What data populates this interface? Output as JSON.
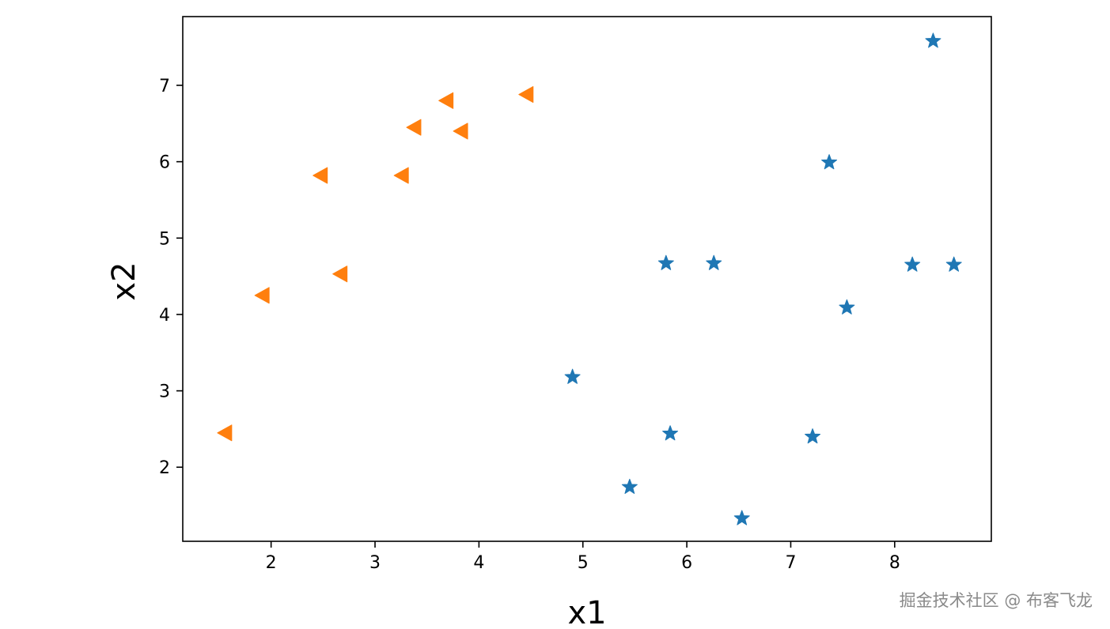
{
  "chart_data": {
    "type": "scatter",
    "title": "",
    "xlabel": "x1",
    "ylabel": "x2",
    "xlim": [
      1.15,
      8.93
    ],
    "ylim": [
      1.03,
      7.9
    ],
    "xticks": [
      2,
      3,
      4,
      5,
      6,
      7,
      8
    ],
    "yticks": [
      2,
      3,
      4,
      5,
      6,
      7
    ],
    "grid": false,
    "legend": "none",
    "series": [
      {
        "marker": "star",
        "color": "#1f77b4",
        "points": [
          {
            "x": 8.37,
            "y": 7.58
          },
          {
            "x": 7.37,
            "y": 5.99
          },
          {
            "x": 5.8,
            "y": 4.67
          },
          {
            "x": 6.26,
            "y": 4.67
          },
          {
            "x": 8.17,
            "y": 4.65
          },
          {
            "x": 8.57,
            "y": 4.65
          },
          {
            "x": 7.54,
            "y": 4.09
          },
          {
            "x": 4.9,
            "y": 3.18
          },
          {
            "x": 5.84,
            "y": 2.44
          },
          {
            "x": 7.21,
            "y": 2.4
          },
          {
            "x": 5.45,
            "y": 1.74
          },
          {
            "x": 6.53,
            "y": 1.33
          }
        ]
      },
      {
        "marker": "triangle-left",
        "color": "#ff7f0e",
        "points": [
          {
            "x": 4.46,
            "y": 6.88
          },
          {
            "x": 3.69,
            "y": 6.8
          },
          {
            "x": 3.38,
            "y": 6.45
          },
          {
            "x": 3.83,
            "y": 6.4
          },
          {
            "x": 2.48,
            "y": 5.82
          },
          {
            "x": 3.26,
            "y": 5.82
          },
          {
            "x": 2.67,
            "y": 4.53
          },
          {
            "x": 1.92,
            "y": 4.25
          },
          {
            "x": 1.56,
            "y": 2.45
          }
        ]
      }
    ]
  },
  "watermark": {
    "text": "掘金技术社区 @ 布客飞龙"
  }
}
